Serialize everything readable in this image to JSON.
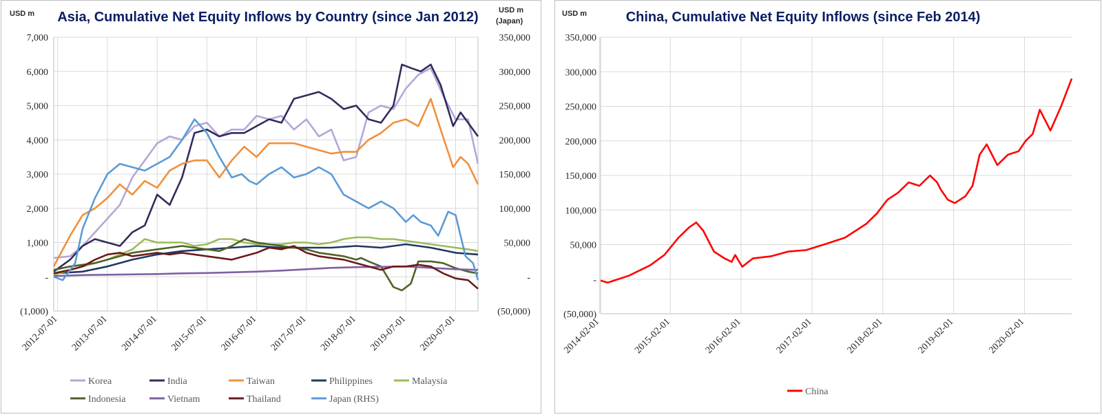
{
  "chart_data": [
    {
      "type": "line",
      "title": "Asia, Cumulative Net Equity Inflows by Country (since Jan 2012)",
      "ylabel_left": "USD m",
      "ylabel_right": "USD m",
      "ylabel_right_sub": "(Japan)",
      "ylim_left": [
        -1000,
        7000
      ],
      "ylim_right": [
        -50000,
        350000
      ],
      "y_ticks_left": [
        "(1,000)",
        "-",
        "1,000",
        "2,000",
        "3,000",
        "4,000",
        "5,000",
        "6,000",
        "7,000"
      ],
      "y_ticks_right": [
        "(50,000)",
        "-",
        "50,000",
        "100,000",
        "150,000",
        "200,000",
        "250,000",
        "300,000",
        "350,000"
      ],
      "x_ticks": [
        "2012-07-01",
        "2013-07-01",
        "2014-07-01",
        "2015-07-01",
        "2016-07-01",
        "2017-07-01",
        "2018-07-01",
        "2019-07-01",
        "2020-07-01"
      ],
      "x_range_years": [
        2012.42,
        2020.95
      ],
      "legend_position": "bottom",
      "series": [
        {
          "name": "Korea",
          "color": "#b4a7d6",
          "axis": "left",
          "x": [
            2012.42,
            2012.75,
            2013.0,
            2013.25,
            2013.5,
            2013.75,
            2014.0,
            2014.25,
            2014.5,
            2014.75,
            2015.0,
            2015.25,
            2015.5,
            2015.75,
            2016.0,
            2016.25,
            2016.5,
            2016.75,
            2017.0,
            2017.25,
            2017.5,
            2017.75,
            2018.0,
            2018.25,
            2018.5,
            2018.75,
            2019.0,
            2019.25,
            2019.5,
            2019.75,
            2020.0,
            2020.25,
            2020.5,
            2020.75,
            2020.95
          ],
          "y": [
            550,
            600,
            900,
            1300,
            1700,
            2100,
            2900,
            3400,
            3900,
            4100,
            4000,
            4400,
            4500,
            4100,
            4300,
            4300,
            4700,
            4600,
            4700,
            4300,
            4600,
            4100,
            4300,
            3400,
            3500,
            4800,
            5000,
            4900,
            5500,
            5900,
            6100,
            5300,
            4600,
            4600,
            3300
          ]
        },
        {
          "name": "India",
          "color": "#332a5c",
          "axis": "left",
          "x": [
            2012.42,
            2012.75,
            2013.0,
            2013.25,
            2013.5,
            2013.75,
            2014.0,
            2014.25,
            2014.5,
            2014.75,
            2015.0,
            2015.25,
            2015.5,
            2015.75,
            2016.0,
            2016.25,
            2016.5,
            2016.75,
            2017.0,
            2017.25,
            2017.5,
            2017.75,
            2018.0,
            2018.25,
            2018.5,
            2018.75,
            2019.0,
            2019.25,
            2019.42,
            2019.6,
            2019.8,
            2020.0,
            2020.2,
            2020.45,
            2020.6,
            2020.75,
            2020.95
          ],
          "y": [
            150,
            500,
            900,
            1100,
            1000,
            900,
            1300,
            1500,
            2400,
            2100,
            2900,
            4200,
            4300,
            4100,
            4200,
            4200,
            4400,
            4600,
            4500,
            5200,
            5300,
            5400,
            5200,
            4900,
            5000,
            4600,
            4500,
            5000,
            6200,
            6100,
            6000,
            6200,
            5600,
            4400,
            4800,
            4500,
            4100
          ]
        },
        {
          "name": "Taiwan",
          "color": "#f0903c",
          "axis": "left",
          "x": [
            2012.42,
            2012.75,
            2013.0,
            2013.25,
            2013.5,
            2013.75,
            2014.0,
            2014.25,
            2014.5,
            2014.75,
            2015.0,
            2015.25,
            2015.5,
            2015.75,
            2016.0,
            2016.25,
            2016.5,
            2016.75,
            2017.0,
            2017.25,
            2017.5,
            2017.75,
            2018.0,
            2018.25,
            2018.5,
            2018.75,
            2019.0,
            2019.25,
            2019.5,
            2019.75,
            2020.0,
            2020.2,
            2020.45,
            2020.6,
            2020.75,
            2020.95
          ],
          "y": [
            300,
            1200,
            1800,
            2000,
            2300,
            2700,
            2400,
            2800,
            2600,
            3100,
            3300,
            3400,
            3400,
            2900,
            3400,
            3800,
            3500,
            3900,
            3900,
            3900,
            3800,
            3700,
            3600,
            3650,
            3650,
            4000,
            4200,
            4500,
            4600,
            4400,
            5200,
            4300,
            3200,
            3500,
            3300,
            2700
          ]
        },
        {
          "name": "Philippines",
          "color": "#1f3864",
          "axis": "left",
          "x": [
            2012.42,
            2013.0,
            2013.5,
            2014.0,
            2014.5,
            2015.0,
            2015.5,
            2016.0,
            2016.5,
            2017.0,
            2017.5,
            2018.0,
            2018.5,
            2019.0,
            2019.5,
            2020.0,
            2020.5,
            2020.95
          ],
          "y": [
            100,
            150,
            300,
            500,
            650,
            750,
            800,
            850,
            900,
            850,
            850,
            850,
            900,
            850,
            950,
            850,
            700,
            650
          ]
        },
        {
          "name": "Malaysia",
          "color": "#9bbb59",
          "axis": "left",
          "x": [
            2012.42,
            2012.75,
            2013.0,
            2013.25,
            2013.5,
            2013.75,
            2014.0,
            2014.25,
            2014.5,
            2014.75,
            2015.0,
            2015.25,
            2015.5,
            2015.75,
            2016.0,
            2016.25,
            2016.5,
            2016.75,
            2017.0,
            2017.25,
            2017.5,
            2017.75,
            2018.0,
            2018.25,
            2018.5,
            2018.75,
            2019.0,
            2019.25,
            2019.5,
            2019.75,
            2020.0,
            2020.25,
            2020.5,
            2020.75,
            2020.95
          ],
          "y": [
            50,
            200,
            300,
            400,
            500,
            650,
            800,
            1100,
            1000,
            1000,
            1000,
            900,
            950,
            1100,
            1100,
            1000,
            950,
            950,
            950,
            1000,
            1000,
            950,
            1000,
            1100,
            1150,
            1150,
            1100,
            1100,
            1050,
            1000,
            950,
            900,
            850,
            800,
            750
          ]
        },
        {
          "name": "Indonesia",
          "color": "#4f6228",
          "axis": "left",
          "x": [
            2012.42,
            2012.75,
            2013.0,
            2013.25,
            2013.5,
            2013.75,
            2014.0,
            2014.25,
            2014.5,
            2014.75,
            2015.0,
            2015.25,
            2015.5,
            2015.75,
            2016.0,
            2016.25,
            2016.5,
            2016.75,
            2017.0,
            2017.25,
            2017.5,
            2017.75,
            2018.0,
            2018.25,
            2018.5,
            2018.6,
            2018.75,
            2019.0,
            2019.25,
            2019.42,
            2019.6,
            2019.75,
            2020.0,
            2020.25,
            2020.5,
            2020.75,
            2020.95
          ],
          "y": [
            200,
            300,
            350,
            400,
            500,
            600,
            700,
            750,
            800,
            850,
            900,
            850,
            800,
            750,
            900,
            1100,
            1000,
            950,
            900,
            850,
            800,
            700,
            650,
            600,
            500,
            550,
            450,
            300,
            -300,
            -400,
            -200,
            450,
            450,
            400,
            250,
            150,
            100
          ]
        },
        {
          "name": "Vietnam",
          "color": "#7f5fa3",
          "axis": "left",
          "x": [
            2012.42,
            2013.0,
            2013.5,
            2014.0,
            2014.5,
            2015.0,
            2015.5,
            2016.0,
            2016.5,
            2017.0,
            2017.5,
            2018.0,
            2018.5,
            2019.0,
            2019.5,
            2020.0,
            2020.5,
            2020.95
          ],
          "y": [
            20,
            50,
            60,
            70,
            80,
            100,
            110,
            130,
            150,
            180,
            220,
            260,
            280,
            290,
            300,
            260,
            220,
            200
          ]
        },
        {
          "name": "Thailand",
          "color": "#6b1a1a",
          "axis": "left",
          "x": [
            2012.42,
            2012.75,
            2013.0,
            2013.25,
            2013.5,
            2013.75,
            2014.0,
            2014.25,
            2014.5,
            2014.75,
            2015.0,
            2015.25,
            2015.5,
            2015.75,
            2016.0,
            2016.25,
            2016.5,
            2016.75,
            2017.0,
            2017.25,
            2017.5,
            2017.75,
            2018.0,
            2018.25,
            2018.5,
            2018.75,
            2019.0,
            2019.25,
            2019.5,
            2019.75,
            2020.0,
            2020.25,
            2020.5,
            2020.75,
            2020.95
          ],
          "y": [
            100,
            200,
            300,
            500,
            650,
            700,
            600,
            650,
            700,
            650,
            700,
            650,
            600,
            550,
            500,
            600,
            700,
            850,
            800,
            900,
            700,
            600,
            550,
            500,
            400,
            300,
            200,
            300,
            300,
            350,
            300,
            100,
            -50,
            -100,
            -350
          ]
        },
        {
          "name": "Japan (RHS)",
          "color": "#5b9bd5",
          "axis": "right",
          "x": [
            2012.42,
            2012.6,
            2012.85,
            2013.0,
            2013.25,
            2013.5,
            2013.75,
            2014.0,
            2014.25,
            2014.5,
            2014.75,
            2015.0,
            2015.25,
            2015.5,
            2015.75,
            2016.0,
            2016.2,
            2016.35,
            2016.5,
            2016.75,
            2017.0,
            2017.25,
            2017.5,
            2017.75,
            2018.0,
            2018.25,
            2018.5,
            2018.75,
            2019.0,
            2019.25,
            2019.5,
            2019.65,
            2019.8,
            2020.0,
            2020.15,
            2020.35,
            2020.5,
            2020.7,
            2020.85,
            2020.95
          ],
          "y": [
            0,
            -5000,
            20000,
            70000,
            115000,
            150000,
            165000,
            160000,
            155000,
            165000,
            175000,
            200000,
            230000,
            210000,
            175000,
            145000,
            150000,
            140000,
            135000,
            150000,
            160000,
            145000,
            150000,
            160000,
            150000,
            120000,
            110000,
            100000,
            110000,
            100000,
            80000,
            90000,
            80000,
            75000,
            60000,
            95000,
            90000,
            30000,
            20000,
            -5000
          ]
        }
      ]
    },
    {
      "type": "line",
      "title": "China, Cumulative Net Equity Inflows (since Feb 2014)",
      "ylabel": "USD m",
      "ylim": [
        -50000,
        350000
      ],
      "y_ticks": [
        "(50,000)",
        "-",
        "50,000",
        "100,000",
        "150,000",
        "200,000",
        "250,000",
        "300,000",
        "350,000"
      ],
      "x_ticks": [
        "2014-02-01",
        "2015-02-01",
        "2016-02-01",
        "2017-02-01",
        "2018-02-01",
        "2019-02-01",
        "2020-02-01"
      ],
      "x_range_years": [
        2014.1,
        2020.75
      ],
      "legend_position": "bottom",
      "series": [
        {
          "name": "China",
          "color": "#ff0000",
          "x": [
            2014.1,
            2014.2,
            2014.5,
            2014.8,
            2015.0,
            2015.2,
            2015.35,
            2015.45,
            2015.55,
            2015.7,
            2015.85,
            2015.95,
            2016.0,
            2016.1,
            2016.25,
            2016.5,
            2016.75,
            2017.0,
            2017.25,
            2017.4,
            2017.55,
            2017.7,
            2017.85,
            2018.0,
            2018.15,
            2018.3,
            2018.45,
            2018.6,
            2018.75,
            2018.85,
            2018.9,
            2019.0,
            2019.1,
            2019.25,
            2019.35,
            2019.45,
            2019.55,
            2019.7,
            2019.85,
            2020.0,
            2020.1,
            2020.2,
            2020.3,
            2020.45,
            2020.6,
            2020.75
          ],
          "y": [
            -2000,
            -5000,
            5000,
            20000,
            35000,
            60000,
            75000,
            82000,
            70000,
            40000,
            30000,
            25000,
            35000,
            18000,
            30000,
            33000,
            40000,
            42000,
            50000,
            55000,
            60000,
            70000,
            80000,
            95000,
            115000,
            125000,
            140000,
            135000,
            150000,
            140000,
            130000,
            115000,
            110000,
            120000,
            135000,
            180000,
            195000,
            165000,
            180000,
            185000,
            200000,
            210000,
            245000,
            215000,
            250000,
            290000
          ]
        }
      ]
    }
  ]
}
